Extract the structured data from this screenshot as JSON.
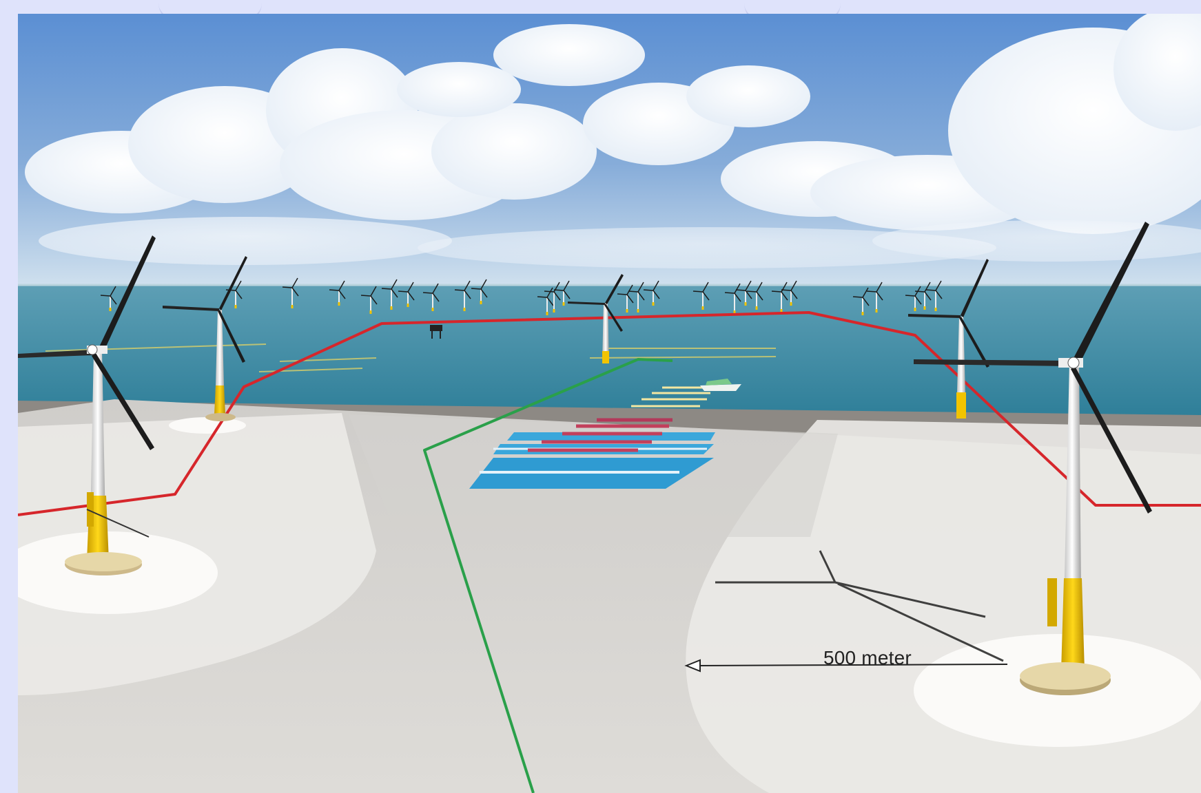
{
  "scene": {
    "kind": "offshore wind farm rendering",
    "scale_label": "500 meter"
  },
  "colors": {
    "frame_background": "#dfe3fb",
    "sky_top": "#5b8fd3",
    "sky_horizon": "#cfe0ee",
    "sea": "#3f8ea7",
    "seabed_plane": "#dedcd8",
    "safety_zone": "#ebeae7",
    "foundation_pad": "#fbfaf8",
    "boundary_red": "#d6262b",
    "route_green": "#2aa04a",
    "aquaculture_blue": "#2f9bd2",
    "tower_white": "#f4f4f4",
    "tower_yellow": "#f2c400"
  }
}
